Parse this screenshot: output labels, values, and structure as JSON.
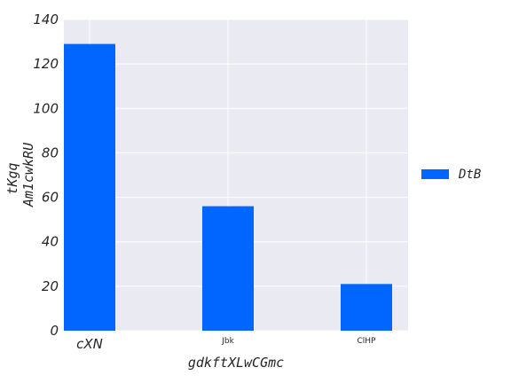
{
  "chart_data": {
    "type": "bar",
    "categories": [
      "cXN",
      "Jbk",
      "ClHP"
    ],
    "series": [
      {
        "name": "DtB",
        "values": [
          129,
          56,
          21
        ]
      }
    ],
    "xlabel": "gdkftXLwCGmc",
    "ylabel_parts": [
      "tKgq",
      "Am1cwkRU"
    ],
    "ylim": [
      0,
      140
    ],
    "yticks": [
      "0",
      "20",
      "40",
      "60",
      "80",
      "100",
      "120",
      "140"
    ],
    "grid": true,
    "legend_position": "right",
    "colors": {
      "bar": "#0066ff",
      "plot_background": "#eaeaf2",
      "grid": "#ffffff",
      "text": "#262626"
    }
  }
}
